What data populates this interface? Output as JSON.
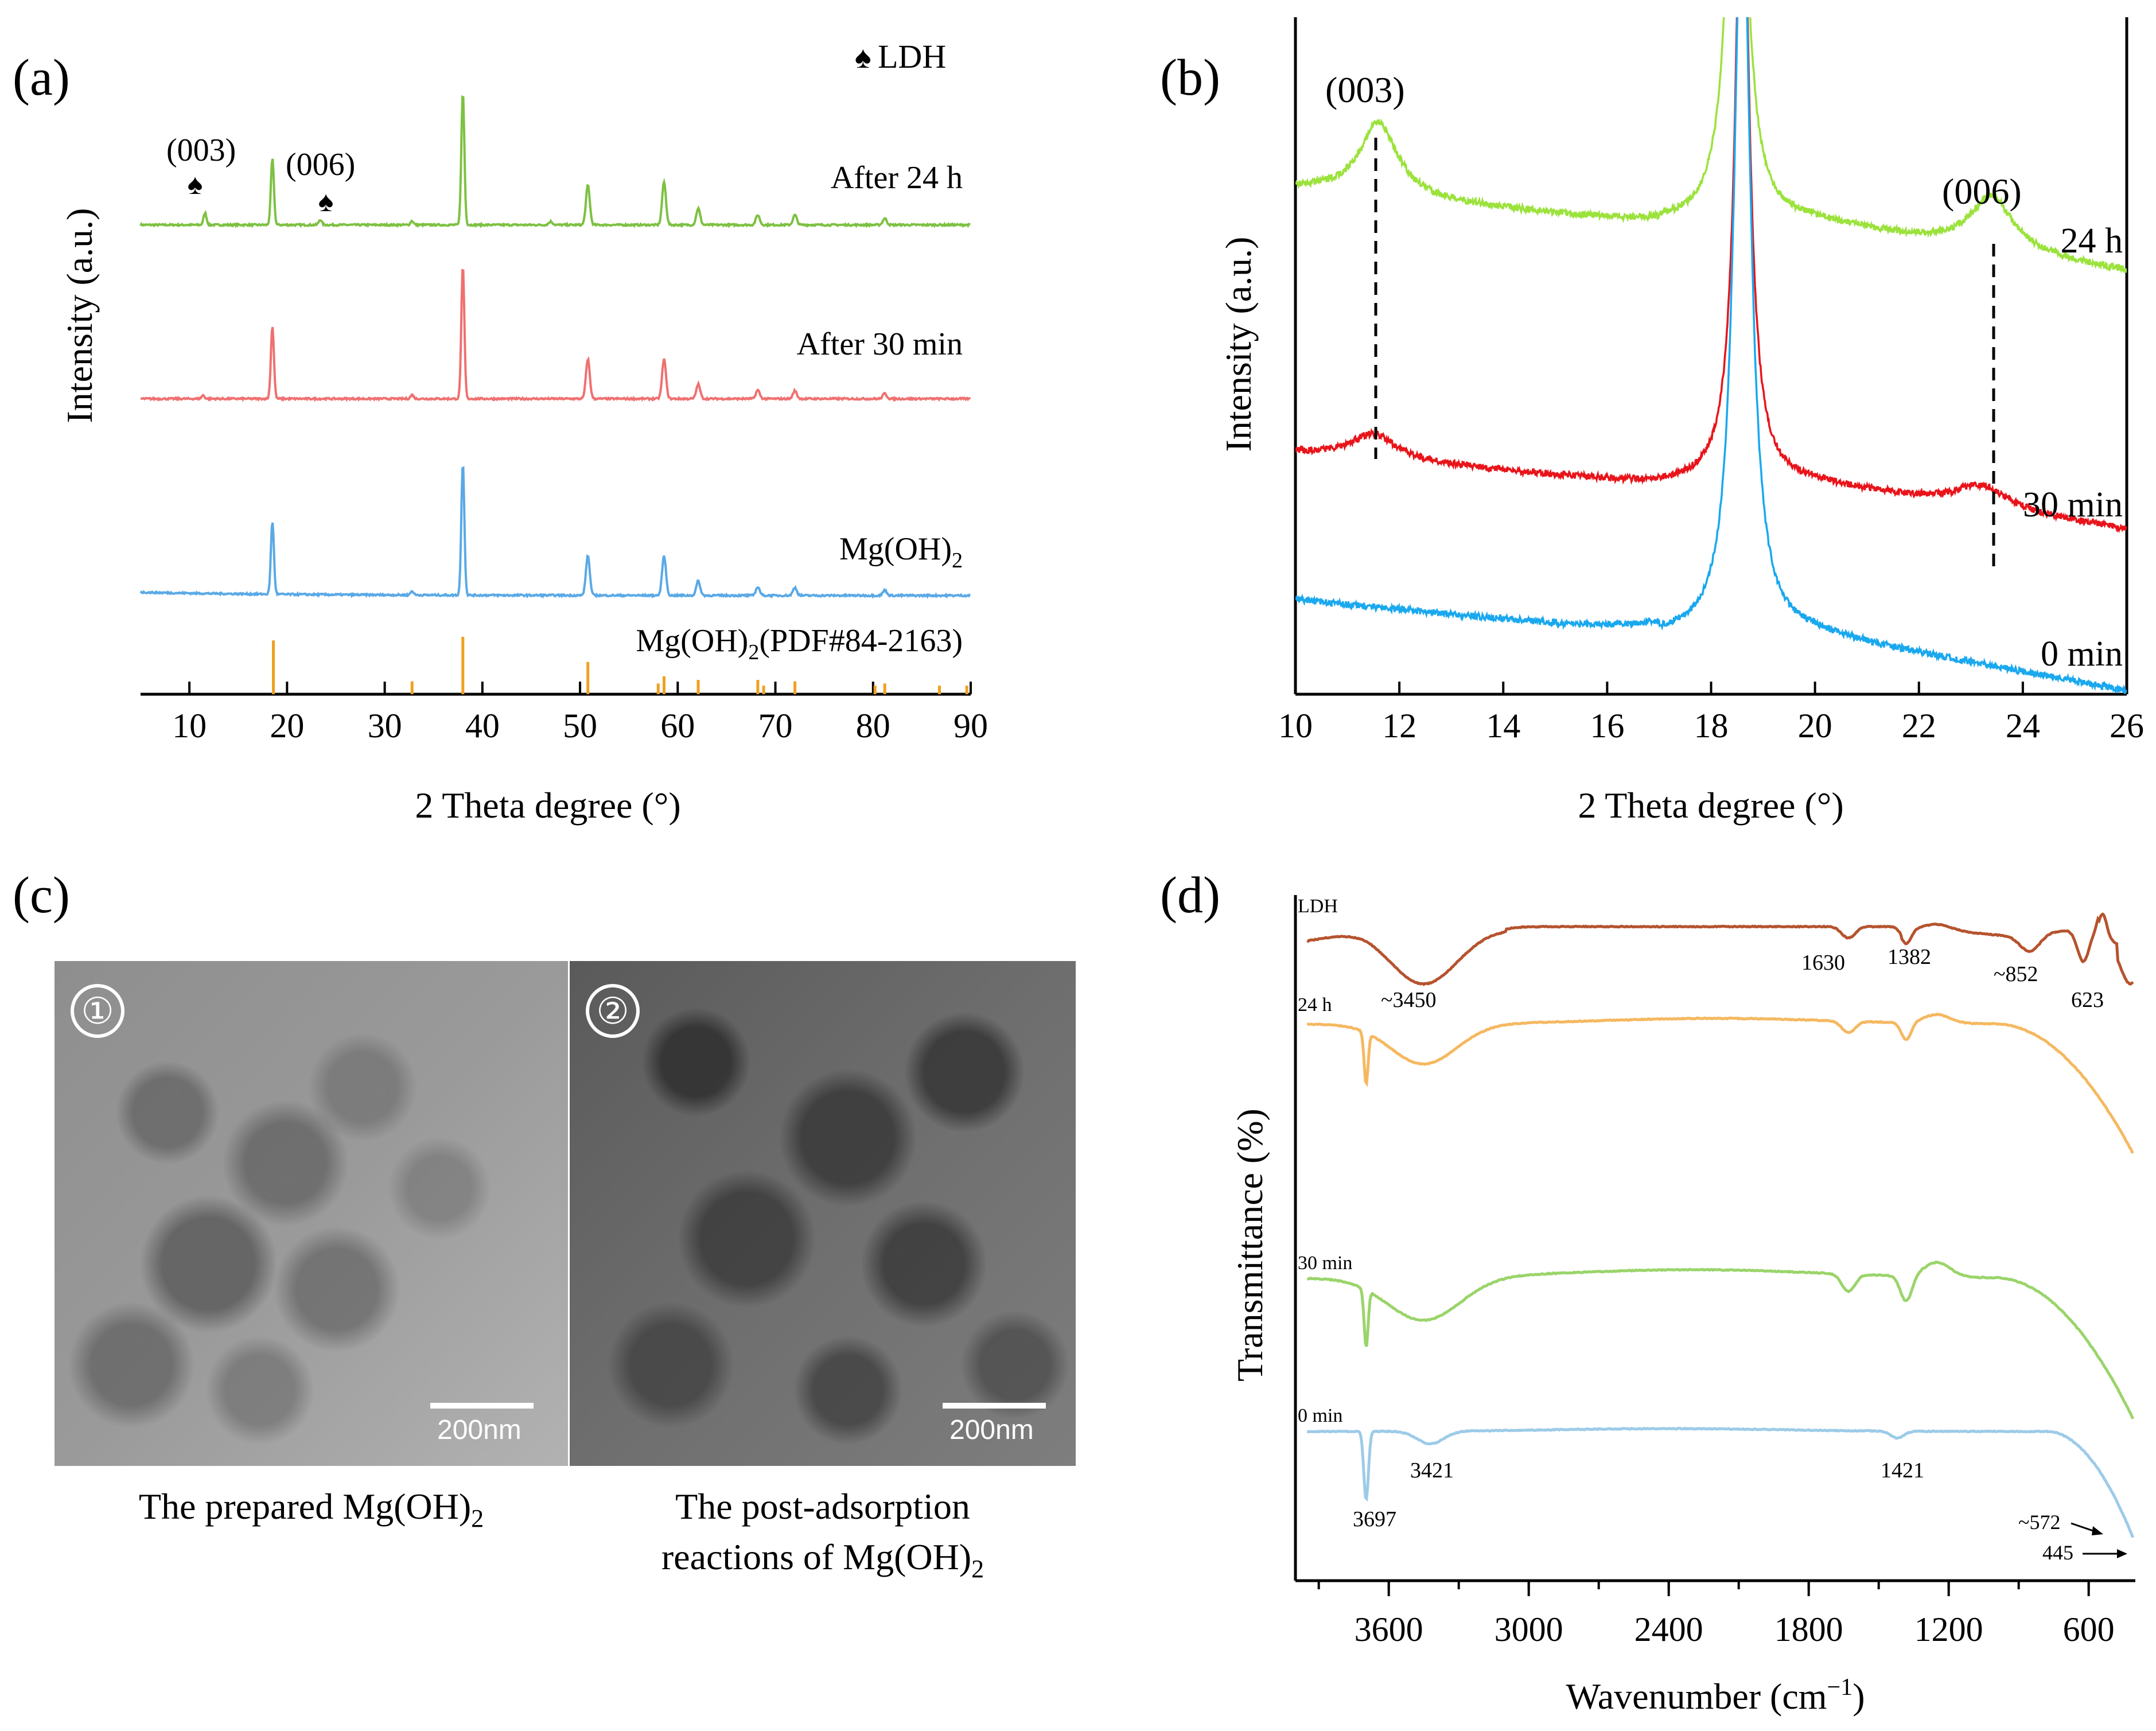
{
  "panels": {
    "a": {
      "label": "(a)"
    },
    "b": {
      "label": "(b)"
    },
    "c": {
      "label": "(c)"
    },
    "d": {
      "label": "(d)"
    }
  },
  "chart_data": [
    {
      "panel": "a",
      "type": "line",
      "title": "",
      "xlabel": "2 Theta degree (°)",
      "ylabel": "Intensity (a.u.)",
      "xlim": [
        5,
        90
      ],
      "xticks": [
        "10",
        "20",
        "30",
        "40",
        "50",
        "60",
        "70",
        "80",
        "90"
      ],
      "legend_symbol": "♠",
      "legend_text": "LDH",
      "series": [
        {
          "name": "After 24 h",
          "color": "#7dc142",
          "peaks": [
            [
              11.6,
              0.18
            ],
            [
              18.5,
              1.0
            ],
            [
              23.4,
              0.08
            ],
            [
              32.8,
              0.06
            ],
            [
              38.0,
              2.0
            ],
            [
              47.0,
              0.05
            ],
            [
              50.8,
              0.6
            ],
            [
              58.6,
              0.65
            ],
            [
              62.1,
              0.25
            ],
            [
              68.2,
              0.15
            ],
            [
              72.0,
              0.15
            ],
            [
              81.2,
              0.1
            ]
          ]
        },
        {
          "name": "After 30 min",
          "color": "#f07070",
          "peaks": [
            [
              11.4,
              0.05
            ],
            [
              18.5,
              1.1
            ],
            [
              32.8,
              0.06
            ],
            [
              38.0,
              2.0
            ],
            [
              50.8,
              0.6
            ],
            [
              58.6,
              0.6
            ],
            [
              62.1,
              0.22
            ],
            [
              68.2,
              0.13
            ],
            [
              72.0,
              0.12
            ],
            [
              81.2,
              0.08
            ]
          ]
        },
        {
          "name": "Mg(OH)2",
          "color": "#5aa9e6",
          "peaks": [
            [
              18.5,
              1.1
            ],
            [
              32.8,
              0.06
            ],
            [
              38.0,
              2.0
            ],
            [
              50.8,
              0.6
            ],
            [
              58.6,
              0.6
            ],
            [
              62.1,
              0.22
            ],
            [
              68.2,
              0.13
            ],
            [
              72.0,
              0.12
            ],
            [
              81.2,
              0.08
            ]
          ]
        }
      ],
      "series_labels": {
        "s24": "After 24 h",
        "s30": "After 30 min",
        "s0_main": "Mg(OH)",
        "s0_sub": "2"
      },
      "reference": {
        "name": "Mg(OH)2(PDF#84-2163)",
        "color": "#f0a020",
        "lines": [
          [
            18.6,
            0.75
          ],
          [
            32.8,
            0.18
          ],
          [
            38.0,
            0.8
          ],
          [
            50.8,
            0.45
          ],
          [
            58.0,
            0.15
          ],
          [
            58.6,
            0.25
          ],
          [
            62.1,
            0.2
          ],
          [
            68.2,
            0.2
          ],
          [
            68.8,
            0.12
          ],
          [
            72.0,
            0.18
          ],
          [
            80.2,
            0.12
          ],
          [
            81.2,
            0.15
          ],
          [
            86.8,
            0.12
          ],
          [
            89.6,
            0.12
          ]
        ],
        "label_main": "Mg(OH)",
        "label_sub": "2",
        "label_rest": "(PDF#84-2163)"
      },
      "annotations": [
        {
          "text": "(003)",
          "symbol": "♠",
          "x": 11.6
        },
        {
          "text": "(006)",
          "symbol": "♠",
          "x": 23.4
        }
      ]
    },
    {
      "panel": "b",
      "type": "line",
      "title": "",
      "xlabel": "2 Theta degree (°)",
      "ylabel": "Intensity (a.u.)",
      "xlim": [
        10,
        26
      ],
      "xticks": [
        "10",
        "12",
        "14",
        "16",
        "18",
        "20",
        "22",
        "24",
        "26"
      ],
      "series": [
        {
          "name": "24 h",
          "color": "#9be23c"
        },
        {
          "name": "30 min",
          "color": "#e8141a"
        },
        {
          "name": "0 min",
          "color": "#1aa8ee"
        }
      ],
      "annotations": [
        {
          "text": "(003)",
          "x": 11.6
        },
        {
          "text": "(006)",
          "x": 23.4
        }
      ]
    },
    {
      "panel": "d",
      "type": "line",
      "title": "",
      "xlabel_main": "Wavenumber (cm",
      "xlabel_sup": "−1",
      "xlabel_end": ")",
      "ylabel": "Transmittance (%)",
      "xlim": [
        4000,
        400
      ],
      "xticks": [
        "3600",
        "3000",
        "2400",
        "1800",
        "1200",
        "600"
      ],
      "series": [
        {
          "name": "LDH",
          "color": "#b5532e"
        },
        {
          "name": "24 h",
          "color": "#f5b860"
        },
        {
          "name": "30 min",
          "color": "#9ad46a"
        },
        {
          "name": "0 min",
          "color": "#9ccbe8"
        }
      ],
      "annotations": {
        "ldh": [
          "~3450",
          "1630",
          "1382",
          "~852",
          "623"
        ],
        "zero": [
          "3697",
          "3421",
          "1421",
          "~572",
          "445"
        ]
      }
    }
  ],
  "tem": {
    "image1": {
      "badge": "①",
      "scale": "200nm"
    },
    "image2": {
      "badge": "②",
      "scale": "200nm"
    },
    "caption1": {
      "main": "The prepared Mg(OH)",
      "sub": "2"
    },
    "caption2": {
      "line1": "The post-adsorption",
      "line2_main": "reactions  of Mg(OH)",
      "line2_sub": "2"
    }
  }
}
